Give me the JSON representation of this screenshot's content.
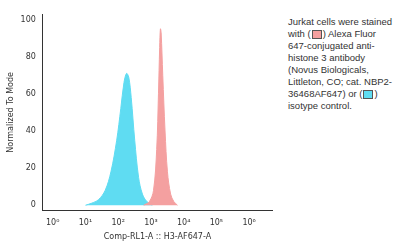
{
  "chart_data": {
    "type": "histogram_overlay",
    "x_label": "Comp-RL1-A :: H3-AF647-A",
    "y_label": "Normalized To Mode",
    "annotation": [
      "Jurkat cells were stained with (",
      ") Alexa Fluor 647-conjugated anti-histone 3 antibody (Novus Biologicals, Littleton, CO; cat. NBP2-36468AF647) or (",
      ") isotype control."
    ],
    "log": "x",
    "grid": false,
    "xlim": [
      0.5,
      5000000
    ],
    "xticks": [
      {
        "value": 1,
        "label": "10⁰"
      },
      {
        "value": 10,
        "label": "10¹"
      },
      {
        "value": 100,
        "label": "10²"
      },
      {
        "value": 1000,
        "label": "10³"
      },
      {
        "value": 10000,
        "label": "10⁴"
      },
      {
        "value": 100000,
        "label": "10⁵"
      },
      {
        "value": 1000000,
        "label": "10⁶"
      }
    ],
    "ylim": [
      -3,
      103
    ],
    "yticks": [
      0,
      20,
      40,
      60,
      80,
      100
    ],
    "series": [
      {
        "color": "#f4a0a0",
        "x": [
          600,
          900,
          1200,
          1500,
          1700,
          1850,
          1950,
          2050,
          2300,
          2700,
          3200,
          4000,
          5000,
          6500
        ],
        "values": [
          0,
          2,
          8,
          30,
          60,
          85,
          95,
          93,
          70,
          40,
          18,
          6,
          2,
          0
        ]
      },
      {
        "color": "#5fdcf2",
        "x": [
          10,
          15,
          25,
          40,
          60,
          90,
          120,
          150,
          180,
          210,
          250,
          320,
          420,
          550,
          750,
          1100
        ],
        "values": [
          0,
          1,
          3,
          8,
          18,
          35,
          52,
          66,
          71,
          69,
          58,
          35,
          15,
          6,
          2,
          0
        ]
      }
    ]
  }
}
